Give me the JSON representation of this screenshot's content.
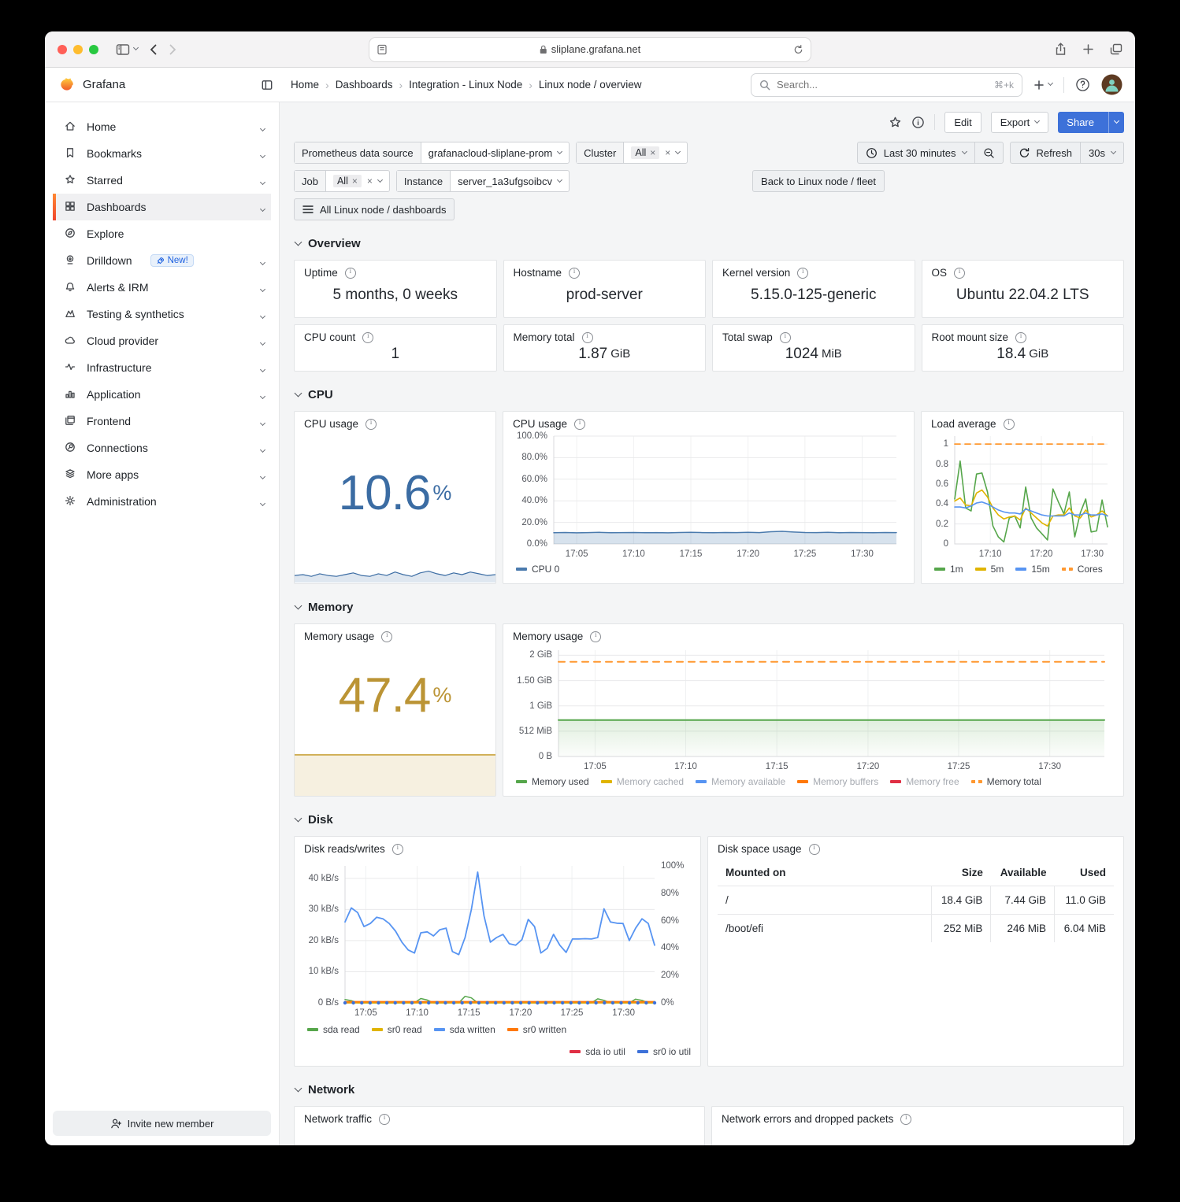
{
  "browser": {
    "url": "sliplane.grafana.net"
  },
  "header": {
    "brand": "Grafana",
    "breadcrumbs": [
      "Home",
      "Dashboards",
      "Integration - Linux Node",
      "Linux node / overview"
    ],
    "search_placeholder": "Search...",
    "shortcut": "⌘+k"
  },
  "sidebar": {
    "items": [
      {
        "label": "Home",
        "icon": "home",
        "chevron": true
      },
      {
        "label": "Bookmarks",
        "icon": "bookmark",
        "chevron": true
      },
      {
        "label": "Starred",
        "icon": "star",
        "chevron": true
      },
      {
        "label": "Dashboards",
        "icon": "grid",
        "chevron": true,
        "active": true
      },
      {
        "label": "Explore",
        "icon": "compass",
        "chevron": false
      },
      {
        "label": "Drilldown",
        "icon": "drilldown",
        "chevron": true,
        "badge": "New!"
      },
      {
        "label": "Alerts & IRM",
        "icon": "bell",
        "chevron": true
      },
      {
        "label": "Testing & synthetics",
        "icon": "k6",
        "chevron": true
      },
      {
        "label": "Cloud provider",
        "icon": "cloud",
        "chevron": true
      },
      {
        "label": "Infrastructure",
        "icon": "pulse",
        "chevron": true
      },
      {
        "label": "Application",
        "icon": "bars",
        "chevron": true
      },
      {
        "label": "Frontend",
        "icon": "frontend",
        "chevron": true
      },
      {
        "label": "Connections",
        "icon": "plug",
        "chevron": true
      },
      {
        "label": "More apps",
        "icon": "layers",
        "chevron": true
      },
      {
        "label": "Administration",
        "icon": "gear",
        "chevron": true
      }
    ],
    "invite": "Invite new member"
  },
  "actions": {
    "edit": "Edit",
    "export": "Export",
    "share": "Share"
  },
  "filters": {
    "datasource_label": "Prometheus data source",
    "datasource_value": "grafanacloud-sliplane-prom",
    "cluster_label": "Cluster",
    "cluster_value": "All",
    "job_label": "Job",
    "job_value": "All",
    "instance_label": "Instance",
    "instance_value": "server_1a3ufgsoibcv",
    "back_button": "Back to Linux node / fleet",
    "dashboards_button": "All Linux node / dashboards"
  },
  "time": {
    "range": "Last 30 minutes",
    "refresh": "Refresh",
    "interval": "30s"
  },
  "sections": {
    "overview": "Overview",
    "cpu": "CPU",
    "memory": "Memory",
    "disk": "Disk",
    "network": "Network"
  },
  "overview_stats": [
    {
      "title": "Uptime",
      "value": "5 months, 0 weeks",
      "unit": ""
    },
    {
      "title": "Hostname",
      "value": "prod-server",
      "unit": ""
    },
    {
      "title": "Kernel version",
      "value": "5.15.0-125-generic",
      "unit": ""
    },
    {
      "title": "OS",
      "value": "Ubuntu 22.04.2 LTS",
      "unit": ""
    },
    {
      "title": "CPU count",
      "value": "1",
      "unit": ""
    },
    {
      "title": "Memory total",
      "value": "1.87",
      "unit": "GiB"
    },
    {
      "title": "Total swap",
      "value": "1024",
      "unit": "MiB"
    },
    {
      "title": "Root mount size",
      "value": "18.4",
      "unit": "GiB"
    }
  ],
  "panels": {
    "cpu_stat_title": "CPU usage",
    "cpu_ts_title": "CPU usage",
    "load_title": "Load average",
    "mem_stat_title": "Memory usage",
    "mem_ts_title": "Memory usage",
    "disk_rw_title": "Disk reads/writes",
    "disk_table_title": "Disk space usage",
    "net_traffic_title": "Network traffic",
    "net_err_title": "Network errors and dropped packets"
  },
  "stat_values": {
    "cpu": {
      "value": "10.6",
      "unit": "%"
    },
    "memory": {
      "value": "47.4",
      "unit": "%"
    }
  },
  "disk_table": {
    "headers": [
      "Mounted on",
      "Size",
      "Available",
      "Used"
    ],
    "rows": [
      [
        "/",
        "18.4 GiB",
        "7.44 GiB",
        "11.0 GiB"
      ],
      [
        "/boot/efi",
        "252 MiB",
        "246 MiB",
        "6.04 MiB"
      ]
    ]
  },
  "chart_data": [
    {
      "id": "cpu-usage-timeseries",
      "type": "area",
      "title": "CPU usage",
      "ymin": 0,
      "ymax": 100,
      "pad": [
        8,
        10,
        22,
        52
      ],
      "axis": true,
      "y_ticks": [
        {
          "v": 0,
          "label": "0.0%"
        },
        {
          "v": 20,
          "label": "20.0%"
        },
        {
          "v": 40,
          "label": "40.0%"
        },
        {
          "v": 60,
          "label": "60.0%"
        },
        {
          "v": 80,
          "label": "80.0%"
        },
        {
          "v": 100,
          "label": "100.0%"
        }
      ],
      "x_ticks": [
        {
          "f": 0.067,
          "label": "17:05"
        },
        {
          "f": 0.233,
          "label": "17:10"
        },
        {
          "f": 0.4,
          "label": "17:15"
        },
        {
          "f": 0.567,
          "label": "17:20"
        },
        {
          "f": 0.733,
          "label": "17:25"
        },
        {
          "f": 0.9,
          "label": "17:30"
        }
      ],
      "series": [
        {
          "name": "CPU 0",
          "color": "#4a7aad",
          "width": 1.5,
          "fill": "rgba(74,122,173,0.22)",
          "values": [
            10.4,
            10.6,
            10.3,
            10.5,
            10.7,
            10.4,
            10.5,
            10.6,
            10.4,
            10.5,
            10.3,
            10.6,
            10.8,
            10.5,
            10.4,
            10.6,
            10.5,
            10.7,
            10.5,
            11.3,
            11.7,
            11.0,
            10.6,
            10.5,
            10.7,
            10.4,
            10.6,
            10.5,
            10.4,
            10.6,
            10.5
          ]
        }
      ],
      "legend": [
        {
          "label": "CPU 0",
          "color": "#4a7aad"
        }
      ]
    },
    {
      "id": "load-average",
      "type": "line",
      "title": "Load average",
      "ymin": 0,
      "ymax": 1.08,
      "pad": [
        8,
        8,
        22,
        30
      ],
      "axis": true,
      "y_ticks": [
        {
          "v": 0,
          "label": "0"
        },
        {
          "v": 0.2,
          "label": "0.2"
        },
        {
          "v": 0.4,
          "label": "0.4"
        },
        {
          "v": 0.6,
          "label": "0.6"
        },
        {
          "v": 0.8,
          "label": "0.8"
        },
        {
          "v": 1,
          "label": "1"
        }
      ],
      "x_ticks": [
        {
          "f": 0.233,
          "label": "17:10"
        },
        {
          "f": 0.567,
          "label": "17:20"
        },
        {
          "f": 0.9,
          "label": "17:30"
        }
      ],
      "series": [
        {
          "name": "Cores",
          "color": "#ff9830",
          "width": 1.8,
          "dash": "7,6",
          "values": [
            1,
            1
          ]
        },
        {
          "name": "1m",
          "color": "#56a64b",
          "width": 1.6,
          "values": [
            0.45,
            0.83,
            0.36,
            0.33,
            0.7,
            0.71,
            0.52,
            0.18,
            0.07,
            0.02,
            0.26,
            0.28,
            0.16,
            0.57,
            0.26,
            0.16,
            0.1,
            0.04,
            0.55,
            0.42,
            0.3,
            0.52,
            0.07,
            0.31,
            0.45,
            0.12,
            0.13,
            0.44,
            0.17
          ]
        },
        {
          "name": "5m",
          "color": "#e0b400",
          "width": 1.6,
          "values": [
            0.43,
            0.46,
            0.39,
            0.38,
            0.51,
            0.54,
            0.47,
            0.36,
            0.29,
            0.25,
            0.27,
            0.28,
            0.24,
            0.36,
            0.31,
            0.26,
            0.21,
            0.18,
            0.28,
            0.29,
            0.29,
            0.36,
            0.28,
            0.26,
            0.34,
            0.27,
            0.29,
            0.33,
            0.28
          ]
        },
        {
          "name": "15m",
          "color": "#5794f2",
          "width": 1.6,
          "values": [
            0.37,
            0.37,
            0.36,
            0.38,
            0.41,
            0.42,
            0.4,
            0.37,
            0.34,
            0.32,
            0.31,
            0.31,
            0.3,
            0.35,
            0.33,
            0.31,
            0.29,
            0.28,
            0.28,
            0.28,
            0.28,
            0.31,
            0.29,
            0.29,
            0.31,
            0.29,
            0.29,
            0.3,
            0.28
          ]
        }
      ],
      "legend": [
        {
          "label": "1m",
          "color": "#56a64b"
        },
        {
          "label": "5m",
          "color": "#e0b400"
        },
        {
          "label": "15m",
          "color": "#5794f2"
        },
        {
          "label": "Cores",
          "color": "#ff9830",
          "dash": true
        }
      ]
    },
    {
      "id": "memory-usage-timeseries",
      "type": "area",
      "title": "Memory usage",
      "yunit": "GiB",
      "ymin": 0,
      "ymax": 2.1,
      "pad": [
        10,
        12,
        22,
        58
      ],
      "axis": true,
      "y_ticks": [
        {
          "v": 0,
          "label": "0 B"
        },
        {
          "v": 0.5,
          "label": "512 MiB"
        },
        {
          "v": 1,
          "label": "1 GiB"
        },
        {
          "v": 1.5,
          "label": "1.50 GiB"
        },
        {
          "v": 2,
          "label": "2 GiB"
        }
      ],
      "x_ticks": [
        {
          "f": 0.067,
          "label": "17:05"
        },
        {
          "f": 0.233,
          "label": "17:10"
        },
        {
          "f": 0.4,
          "label": "17:15"
        },
        {
          "f": 0.567,
          "label": "17:20"
        },
        {
          "f": 0.733,
          "label": "17:25"
        },
        {
          "f": 0.9,
          "label": "17:30"
        }
      ],
      "series": [
        {
          "name": "Memory total",
          "color": "#ff9830",
          "width": 2,
          "dash": "8,7",
          "values": [
            1.87,
            1.87
          ]
        },
        {
          "name": "Memory used",
          "color": "#56a64b",
          "width": 2,
          "fill": [
            "rgba(86,166,75,0.18)",
            "rgba(86,166,75,0.02)"
          ],
          "values": [
            0.72,
            0.72
          ]
        }
      ],
      "legend": [
        {
          "label": "Memory used",
          "color": "#56a64b"
        },
        {
          "label": "Memory cached",
          "color": "#e0b400",
          "dim": true
        },
        {
          "label": "Memory available",
          "color": "#5794f2",
          "dim": true
        },
        {
          "label": "Memory buffers",
          "color": "#ff780a",
          "dim": true
        },
        {
          "label": "Memory free",
          "color": "#e02f44",
          "dim": true
        },
        {
          "label": "Memory total",
          "color": "#ff9830",
          "dash": true
        }
      ]
    },
    {
      "id": "disk-reads-writes",
      "type": "line",
      "title": "Disk reads/writes",
      "ymin": 0,
      "ymax": 44,
      "y2min": 0,
      "y2max": 100,
      "pad": [
        14,
        46,
        24,
        52
      ],
      "axis": true,
      "y_ticks": [
        {
          "v": 0,
          "label": "0 B/s"
        },
        {
          "v": 10,
          "label": "10 kB/s"
        },
        {
          "v": 20,
          "label": "20 kB/s"
        },
        {
          "v": 30,
          "label": "30 kB/s"
        },
        {
          "v": 40,
          "label": "40 kB/s"
        }
      ],
      "y2_ticks": [
        {
          "v": 0,
          "label": "0%"
        },
        {
          "v": 20,
          "label": "20%"
        },
        {
          "v": 40,
          "label": "40%"
        },
        {
          "v": 60,
          "label": "60%"
        },
        {
          "v": 80,
          "label": "80%"
        },
        {
          "v": 100,
          "label": "100%"
        }
      ],
      "x_ticks": [
        {
          "f": 0.067,
          "label": "17:05"
        },
        {
          "f": 0.233,
          "label": "17:10"
        },
        {
          "f": 0.4,
          "label": "17:15"
        },
        {
          "f": 0.567,
          "label": "17:20"
        },
        {
          "f": 0.733,
          "label": "17:25"
        },
        {
          "f": 0.9,
          "label": "17:30"
        }
      ],
      "series": [
        {
          "name": "sda io util",
          "color": "#e02f44",
          "width": 1.4,
          "axis": "right",
          "values": [
            0,
            0
          ]
        },
        {
          "name": "sda read",
          "color": "#56a64b",
          "width": 1.5,
          "values": [
            1.1,
            0.7,
            0,
            0,
            0,
            0,
            0,
            0,
            0,
            0,
            0,
            0,
            1.4,
            0.9,
            0,
            0,
            0,
            0,
            0,
            2.1,
            1.6,
            0,
            0,
            0,
            0,
            0,
            0,
            0,
            0,
            0,
            0,
            0,
            0,
            0,
            0,
            0,
            0,
            0,
            0,
            0,
            1.3,
            0.8,
            0,
            0,
            0,
            0,
            1.2,
            0.8,
            0,
            0
          ]
        },
        {
          "name": "sr0 read",
          "color": "#e0b400",
          "width": 1.4,
          "values": [
            0,
            0
          ]
        },
        {
          "name": "sr0 written",
          "color": "#ff780a",
          "width": 2,
          "values": [
            0.35,
            0.35
          ]
        },
        {
          "name": "sda written",
          "color": "#5794f2",
          "width": 1.8,
          "values": [
            26,
            30.5,
            29,
            24.5,
            25.5,
            27.5,
            27,
            25.5,
            23,
            19.5,
            17,
            16,
            22.5,
            22.8,
            21.5,
            23.5,
            24,
            16.5,
            15.5,
            21,
            30,
            42,
            28,
            19.5,
            21,
            22,
            19,
            18.5,
            20.3,
            26.8,
            24.5,
            16,
            17.5,
            22,
            18.5,
            16.2,
            20.5,
            20.5,
            20.6,
            20.5,
            21,
            30.2,
            26,
            25.6,
            25.5,
            20,
            24,
            27,
            25.5,
            18.5
          ]
        },
        {
          "name": "sr0 io util",
          "color": "#3d71d9",
          "axis": "right",
          "points_only": true,
          "points_n": 38,
          "values": [
            0
          ]
        }
      ],
      "legend": [
        {
          "label": "sda read",
          "color": "#56a64b"
        },
        {
          "label": "sr0 read",
          "color": "#e0b400"
        },
        {
          "label": "sda written",
          "color": "#5794f2"
        },
        {
          "label": "sr0 written",
          "color": "#ff780a"
        }
      ],
      "legend2": [
        {
          "label": "sda io util",
          "color": "#e02f44"
        },
        {
          "label": "sr0 io util",
          "color": "#3d71d9"
        }
      ]
    },
    {
      "id": "cpu-stat-sparkline",
      "type": "area",
      "title": "CPU usage sparkline",
      "ymin": 9.8,
      "ymax": 11.6,
      "pad": [
        3,
        0,
        1,
        0
      ],
      "series": [
        {
          "name": "CPU usage",
          "color": "#3b6ca3",
          "width": 1.2,
          "fill": "rgba(59,108,163,0.16)",
          "values": [
            10.6,
            10.7,
            10.5,
            10.8,
            10.6,
            10.5,
            10.7,
            10.9,
            10.6,
            10.5,
            10.8,
            10.6,
            11.0,
            10.7,
            10.5,
            10.9,
            11.1,
            10.8,
            10.6,
            10.9,
            10.7,
            11.0,
            10.8,
            10.6,
            10.7
          ]
        }
      ]
    },
    {
      "id": "memory-stat-sparkline",
      "type": "area",
      "title": "Memory usage sparkline",
      "ymin": 0,
      "ymax": 50,
      "pad": [
        3,
        0,
        0,
        0
      ],
      "series": [
        {
          "name": "Memory usage",
          "color": "#c9a23c",
          "width": 1.6,
          "fill": "rgba(201,162,60,0.16)",
          "values": [
            47.4,
            47.4
          ]
        }
      ]
    }
  ]
}
